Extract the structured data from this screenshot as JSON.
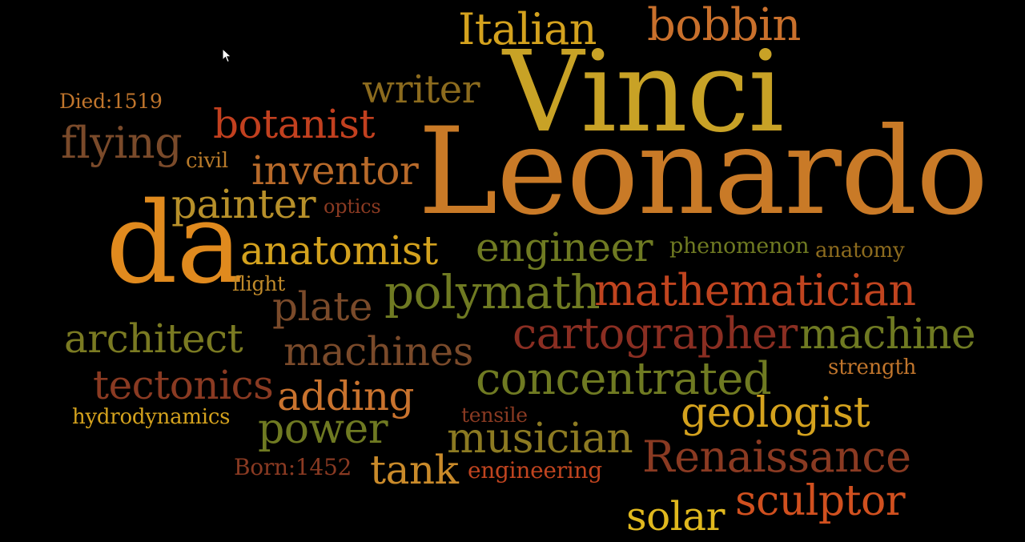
{
  "colors": {
    "background": "#000000",
    "palette": [
      "#d4a21e",
      "#c9732e",
      "#e08a1e",
      "#8c6b1e",
      "#b2471f",
      "#7a4a2a",
      "#a33a22",
      "#6f7a22",
      "#b7902a",
      "#c05a2a"
    ]
  },
  "words": [
    {
      "id": "vinci",
      "text": "Vinci",
      "color": "#c8a226"
    },
    {
      "id": "leonardo",
      "text": "Leonardo",
      "color": "#c97a27"
    },
    {
      "id": "da",
      "text": "da",
      "color": "#e08a1e"
    },
    {
      "id": "italian",
      "text": "Italian",
      "color": "#d4a21e"
    },
    {
      "id": "bobbin",
      "text": "bobbin",
      "color": "#c9702c"
    },
    {
      "id": "writer",
      "text": "writer",
      "color": "#8c6b1e"
    },
    {
      "id": "died",
      "text": "Died:1519",
      "color": "#c0752c"
    },
    {
      "id": "botanist",
      "text": "botanist",
      "color": "#c2401f"
    },
    {
      "id": "flying",
      "text": "flying",
      "color": "#7a4a2a"
    },
    {
      "id": "civil",
      "text": "civil",
      "color": "#b87a2a"
    },
    {
      "id": "inventor",
      "text": "inventor",
      "color": "#b86a2a"
    },
    {
      "id": "painter",
      "text": "painter",
      "color": "#b7902a"
    },
    {
      "id": "optics",
      "text": "optics",
      "color": "#8a3a22"
    },
    {
      "id": "anatomist",
      "text": "anatomist",
      "color": "#d4a21e"
    },
    {
      "id": "engineer",
      "text": "engineer",
      "color": "#6f7a22"
    },
    {
      "id": "phenomenon",
      "text": "phenomenon",
      "color": "#6f7a22"
    },
    {
      "id": "anatomy",
      "text": "anatomy",
      "color": "#8c6b1e"
    },
    {
      "id": "flight",
      "text": "flight",
      "color": "#c08a2a"
    },
    {
      "id": "plate",
      "text": "plate",
      "color": "#7a4a2a"
    },
    {
      "id": "polymath",
      "text": "polymath",
      "color": "#6f7a22"
    },
    {
      "id": "mathematician",
      "text": "mathematician",
      "color": "#c0441f"
    },
    {
      "id": "architect",
      "text": "architect",
      "color": "#7a7a22"
    },
    {
      "id": "machines",
      "text": "machines",
      "color": "#7a4a2a"
    },
    {
      "id": "cartographer",
      "text": "cartographer",
      "color": "#8a2e22"
    },
    {
      "id": "machine",
      "text": "machine",
      "color": "#6f7a22"
    },
    {
      "id": "tectonics",
      "text": "tectonics",
      "color": "#8a3a22"
    },
    {
      "id": "adding",
      "text": "adding",
      "color": "#c9732e"
    },
    {
      "id": "concentrated",
      "text": "concentrated",
      "color": "#6f7a22"
    },
    {
      "id": "strength",
      "text": "strength",
      "color": "#c0752c"
    },
    {
      "id": "hydrodynamics",
      "text": "hydrodynamics",
      "color": "#d4a21e"
    },
    {
      "id": "power",
      "text": "power",
      "color": "#6f7a22"
    },
    {
      "id": "tensile",
      "text": "tensile",
      "color": "#8a3a22"
    },
    {
      "id": "geologist",
      "text": "geologist",
      "color": "#d4a21e"
    },
    {
      "id": "musician",
      "text": "musician",
      "color": "#8c7a22"
    },
    {
      "id": "born",
      "text": "Born:1452",
      "color": "#8a3a22"
    },
    {
      "id": "tank",
      "text": "tank",
      "color": "#c98a2a"
    },
    {
      "id": "engineering",
      "text": "engineering",
      "color": "#c0441f"
    },
    {
      "id": "renaissance",
      "text": "Renaissance",
      "color": "#8a3a22"
    },
    {
      "id": "solar",
      "text": "solar",
      "color": "#e0b81e"
    },
    {
      "id": "sculptor",
      "text": "sculptor",
      "color": "#d0501f"
    }
  ]
}
